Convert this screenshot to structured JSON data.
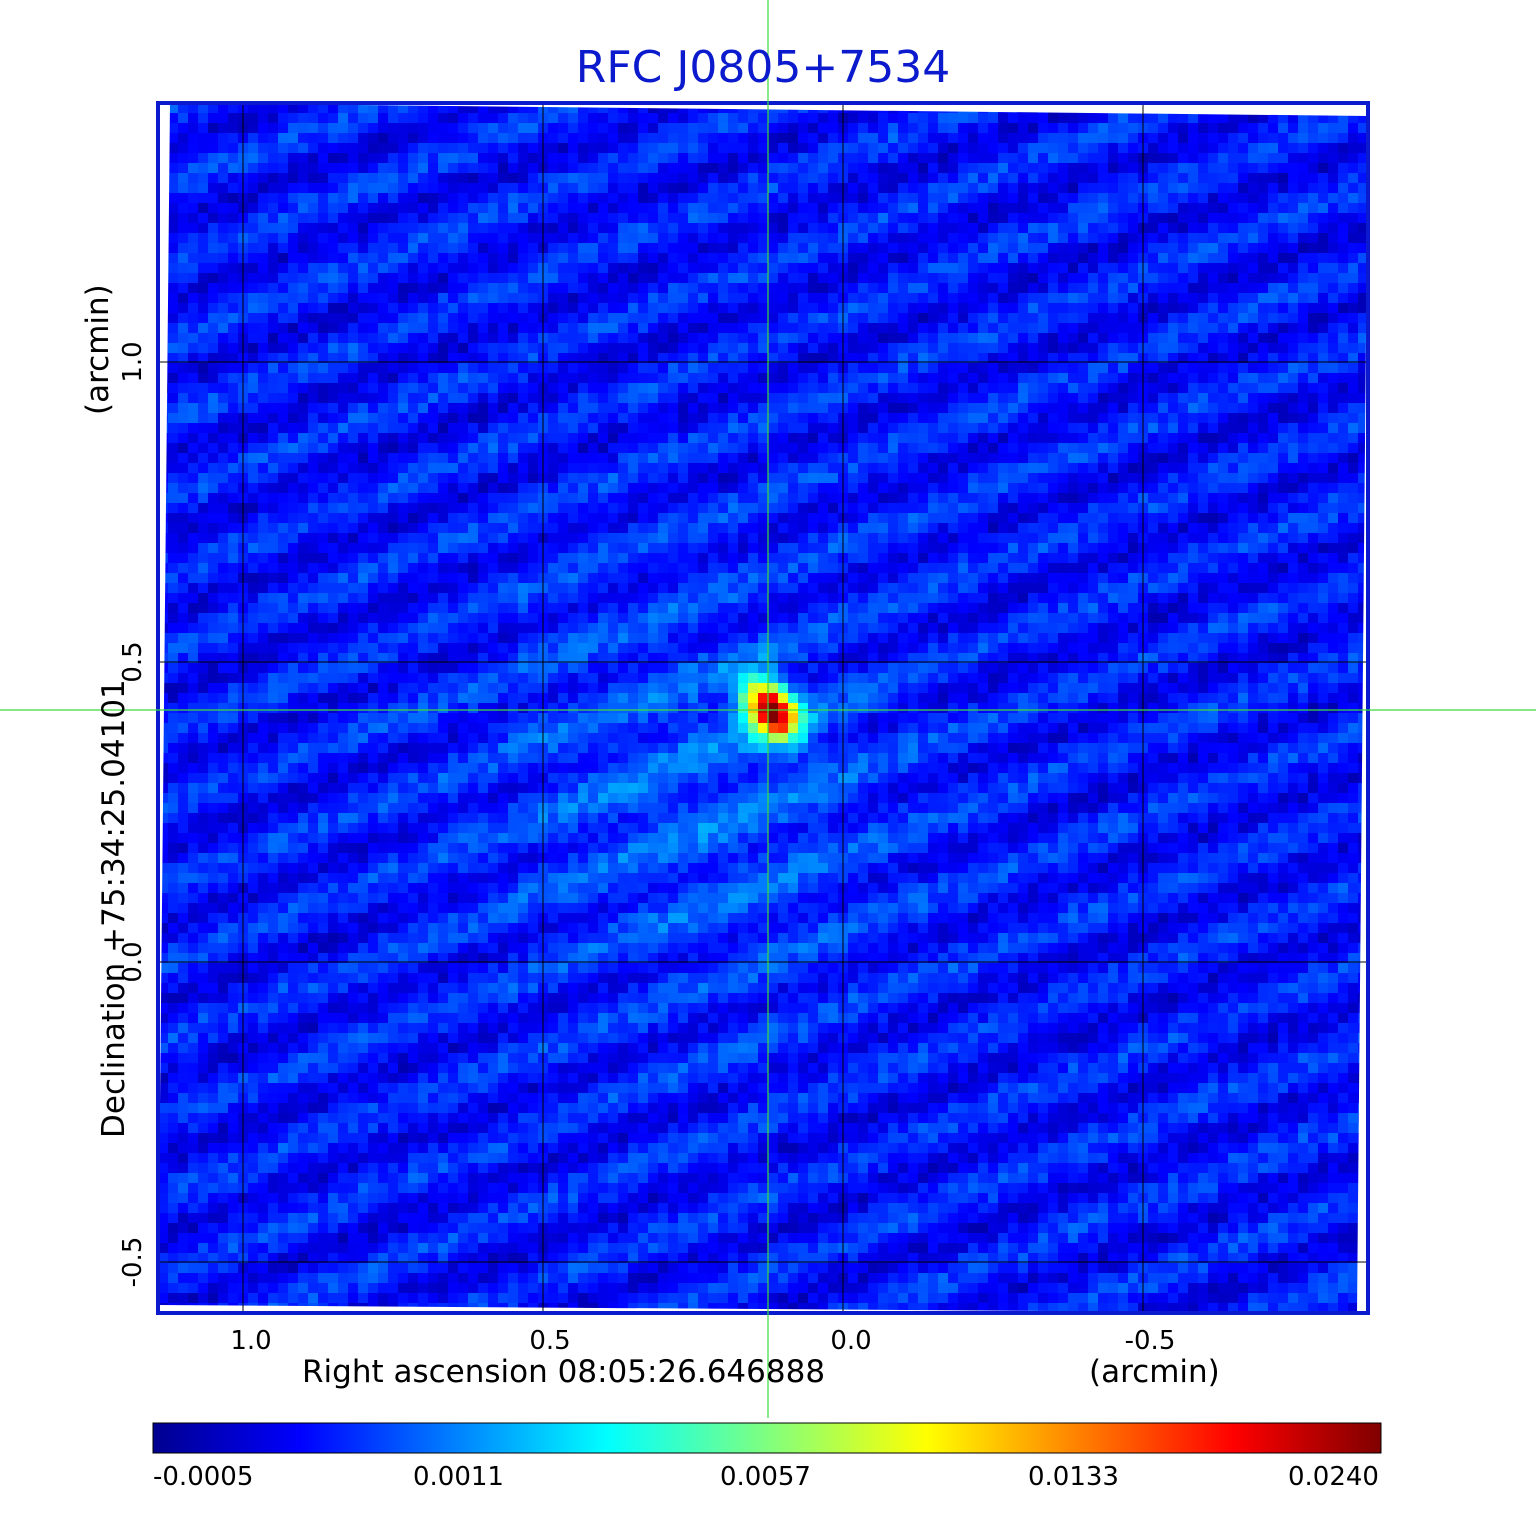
{
  "chart_data": {
    "type": "heatmap",
    "title": "RFC J0805+7534",
    "xlabel": "Right ascension  08:05:26.646888",
    "xunit": "(arcmin)",
    "ylabel": "Declination  +75:34:25.04101",
    "yunit": "(arcmin)",
    "x_ticks": [
      "1.0",
      "0.5",
      "0.0",
      "-0.5"
    ],
    "x_tick_values": [
      1.0,
      0.5,
      0.0,
      -0.5
    ],
    "y_ticks": [
      "1.0",
      "0.5",
      "0.0",
      "-0.5"
    ],
    "y_tick_values": [
      1.0,
      0.5,
      0.0,
      -0.5
    ],
    "xlim": [
      1.14,
      -0.88
    ],
    "ylim": [
      -0.58,
      1.43
    ],
    "grid": true,
    "crosshair": {
      "x": 0.125,
      "y": 0.42
    },
    "source": {
      "x": 0.12,
      "y": 0.42,
      "peak": 0.024,
      "sigma_major_arcmin": 0.038,
      "sigma_minor_arcmin": 0.026
    },
    "background_level": -0.0002,
    "colorbar": {
      "ticks": [
        "-0.0005",
        "0.0011",
        "0.0057",
        "0.0133",
        "0.0240"
      ],
      "tick_values": [
        -0.0005,
        0.0011,
        0.0057,
        0.0133,
        0.024
      ],
      "colormap": "jet"
    },
    "colors": {
      "frame": "#0a1acc",
      "crosshair": "#3ddc3d",
      "grid": "#000000"
    }
  }
}
